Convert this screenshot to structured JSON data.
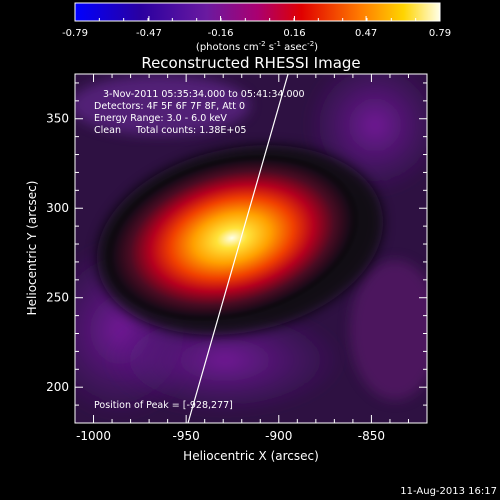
{
  "colorbar": {
    "ticks": [
      "-0.79",
      "-0.47",
      "-0.16",
      "0.16",
      "0.47",
      "0.79"
    ],
    "unit_parts": [
      "(photons cm",
      "-2",
      " s",
      "-1",
      " asec",
      "-2",
      ")"
    ]
  },
  "chart_data": {
    "type": "heatmap",
    "title": "Reconstructed RHESSI Image",
    "xlabel": "Heliocentric X (arcsec)",
    "ylabel": "Heliocentric Y (arcsec)",
    "xlim": [
      -1010,
      -820
    ],
    "ylim": [
      180,
      375
    ],
    "xticks": [
      "-1000",
      "-950",
      "-900",
      "-850"
    ],
    "yticks": [
      "200",
      "250",
      "300",
      "350"
    ],
    "xtick_values": [
      -1000,
      -950,
      -900,
      -850
    ],
    "ytick_values": [
      200,
      250,
      300,
      350
    ],
    "value_range": [
      -0.79,
      0.79
    ],
    "colormap": [
      "#0000ff",
      "#3f006e",
      "#7a1aa0",
      "#b2005a",
      "#e00000",
      "#ff7a00",
      "#ffd400",
      "#ffffe8"
    ],
    "peak": {
      "x": -928,
      "y": 277
    },
    "limb_line": [
      [
        -949,
        180
      ],
      [
        -895,
        375
      ]
    ],
    "annotations": [
      "3-Nov-2011 05:35:34.000 to 05:41:34.000",
      "Detectors: 4F 5F 6F 7F 8F, Att 0",
      "Energy Range: 3.0 - 6.0 keV",
      "Clean     Total counts: 1.38E+05",
      "Position of Peak = [-928,277]"
    ]
  },
  "footer": {
    "timestamp": "11-Aug-2013 16:17"
  }
}
